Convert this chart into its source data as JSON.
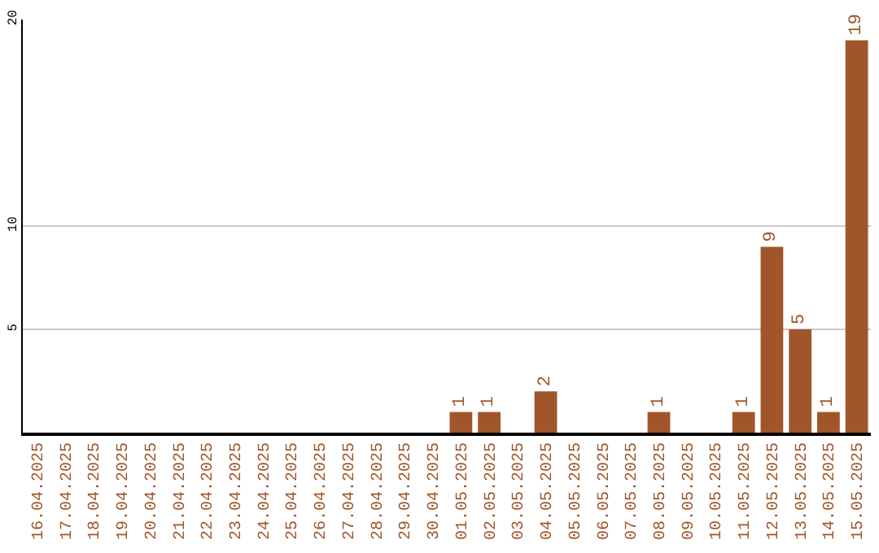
{
  "chart_data": {
    "type": "bar",
    "categories": [
      "16.04.2025",
      "17.04.2025",
      "18.04.2025",
      "19.04.2025",
      "20.04.2025",
      "21.04.2025",
      "22.04.2025",
      "23.04.2025",
      "24.04.2025",
      "25.04.2025",
      "26.04.2025",
      "27.04.2025",
      "28.04.2025",
      "29.04.2025",
      "30.04.2025",
      "01.05.2025",
      "02.05.2025",
      "03.05.2025",
      "04.05.2025",
      "05.05.2025",
      "06.05.2025",
      "07.05.2025",
      "08.05.2025",
      "09.05.2025",
      "10.05.2025",
      "11.05.2025",
      "12.05.2025",
      "13.05.2025",
      "14.05.2025",
      "15.05.2025"
    ],
    "values": [
      0,
      0,
      0,
      0,
      0,
      0,
      0,
      0,
      0,
      0,
      0,
      0,
      0,
      0,
      0,
      1,
      1,
      0,
      2,
      0,
      0,
      0,
      1,
      0,
      0,
      1,
      9,
      5,
      1,
      19
    ],
    "value_labels": [
      null,
      null,
      null,
      null,
      null,
      null,
      null,
      null,
      null,
      null,
      null,
      null,
      null,
      null,
      null,
      "1",
      "1",
      null,
      "2",
      null,
      null,
      null,
      "1",
      null,
      null,
      "1",
      "9",
      "5",
      "1",
      "19"
    ],
    "color": "#a0562a",
    "ylim": [
      0,
      20
    ],
    "yticks": [
      5,
      10,
      20
    ],
    "grid": "y",
    "legend": false
  }
}
